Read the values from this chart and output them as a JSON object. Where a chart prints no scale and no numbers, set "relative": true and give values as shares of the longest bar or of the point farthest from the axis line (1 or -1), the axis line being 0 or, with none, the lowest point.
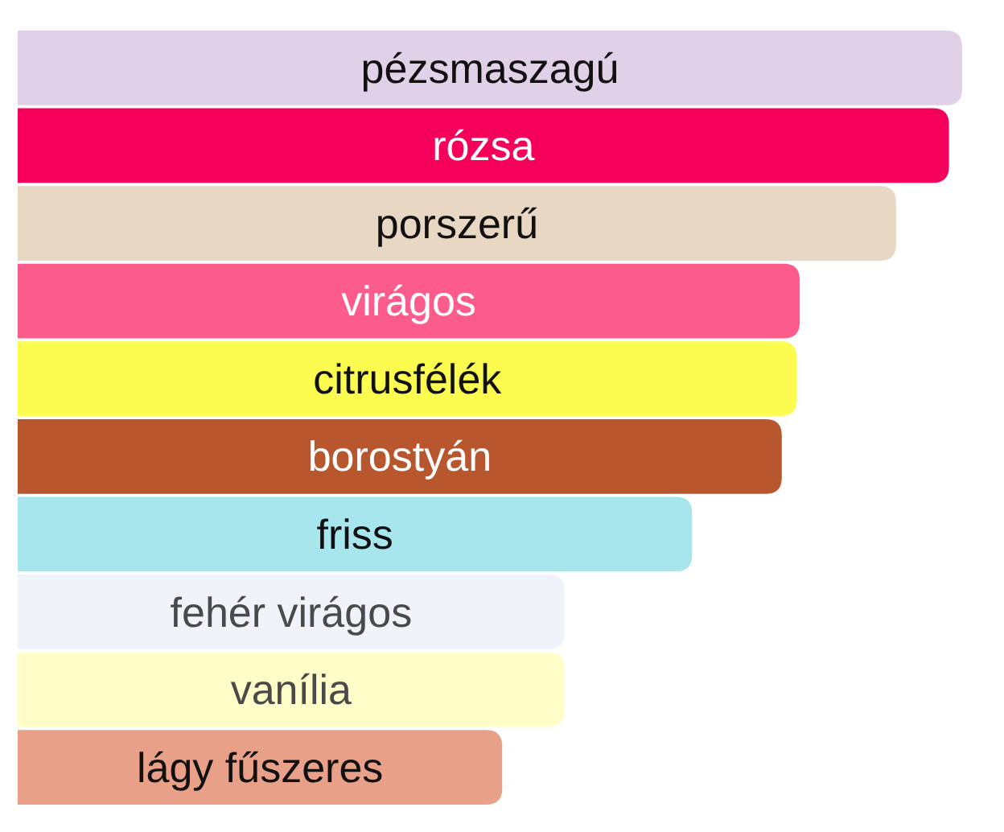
{
  "chart_data": {
    "type": "bar",
    "orientation": "horizontal",
    "relative": true,
    "categories": [
      "pézsmaszagú",
      "rózsa",
      "porszerű",
      "virágos",
      "citrusfélék",
      "borostyán",
      "friss",
      "fehér virágos",
      "vanília",
      "lágy fűszeres"
    ],
    "values": [
      1,
      0.986,
      0.93,
      0.828,
      0.825,
      0.809,
      0.714,
      0.579,
      0.579,
      0.513
    ],
    "colors": [
      "#e0d0e8",
      "#f5005a",
      "#e8d8c3",
      "#fc5c8c",
      "#fcfc50",
      "#b8562e",
      "#a8e6ee",
      "#f0f3fa",
      "#fffdc8",
      "#e8a088"
    ]
  }
}
